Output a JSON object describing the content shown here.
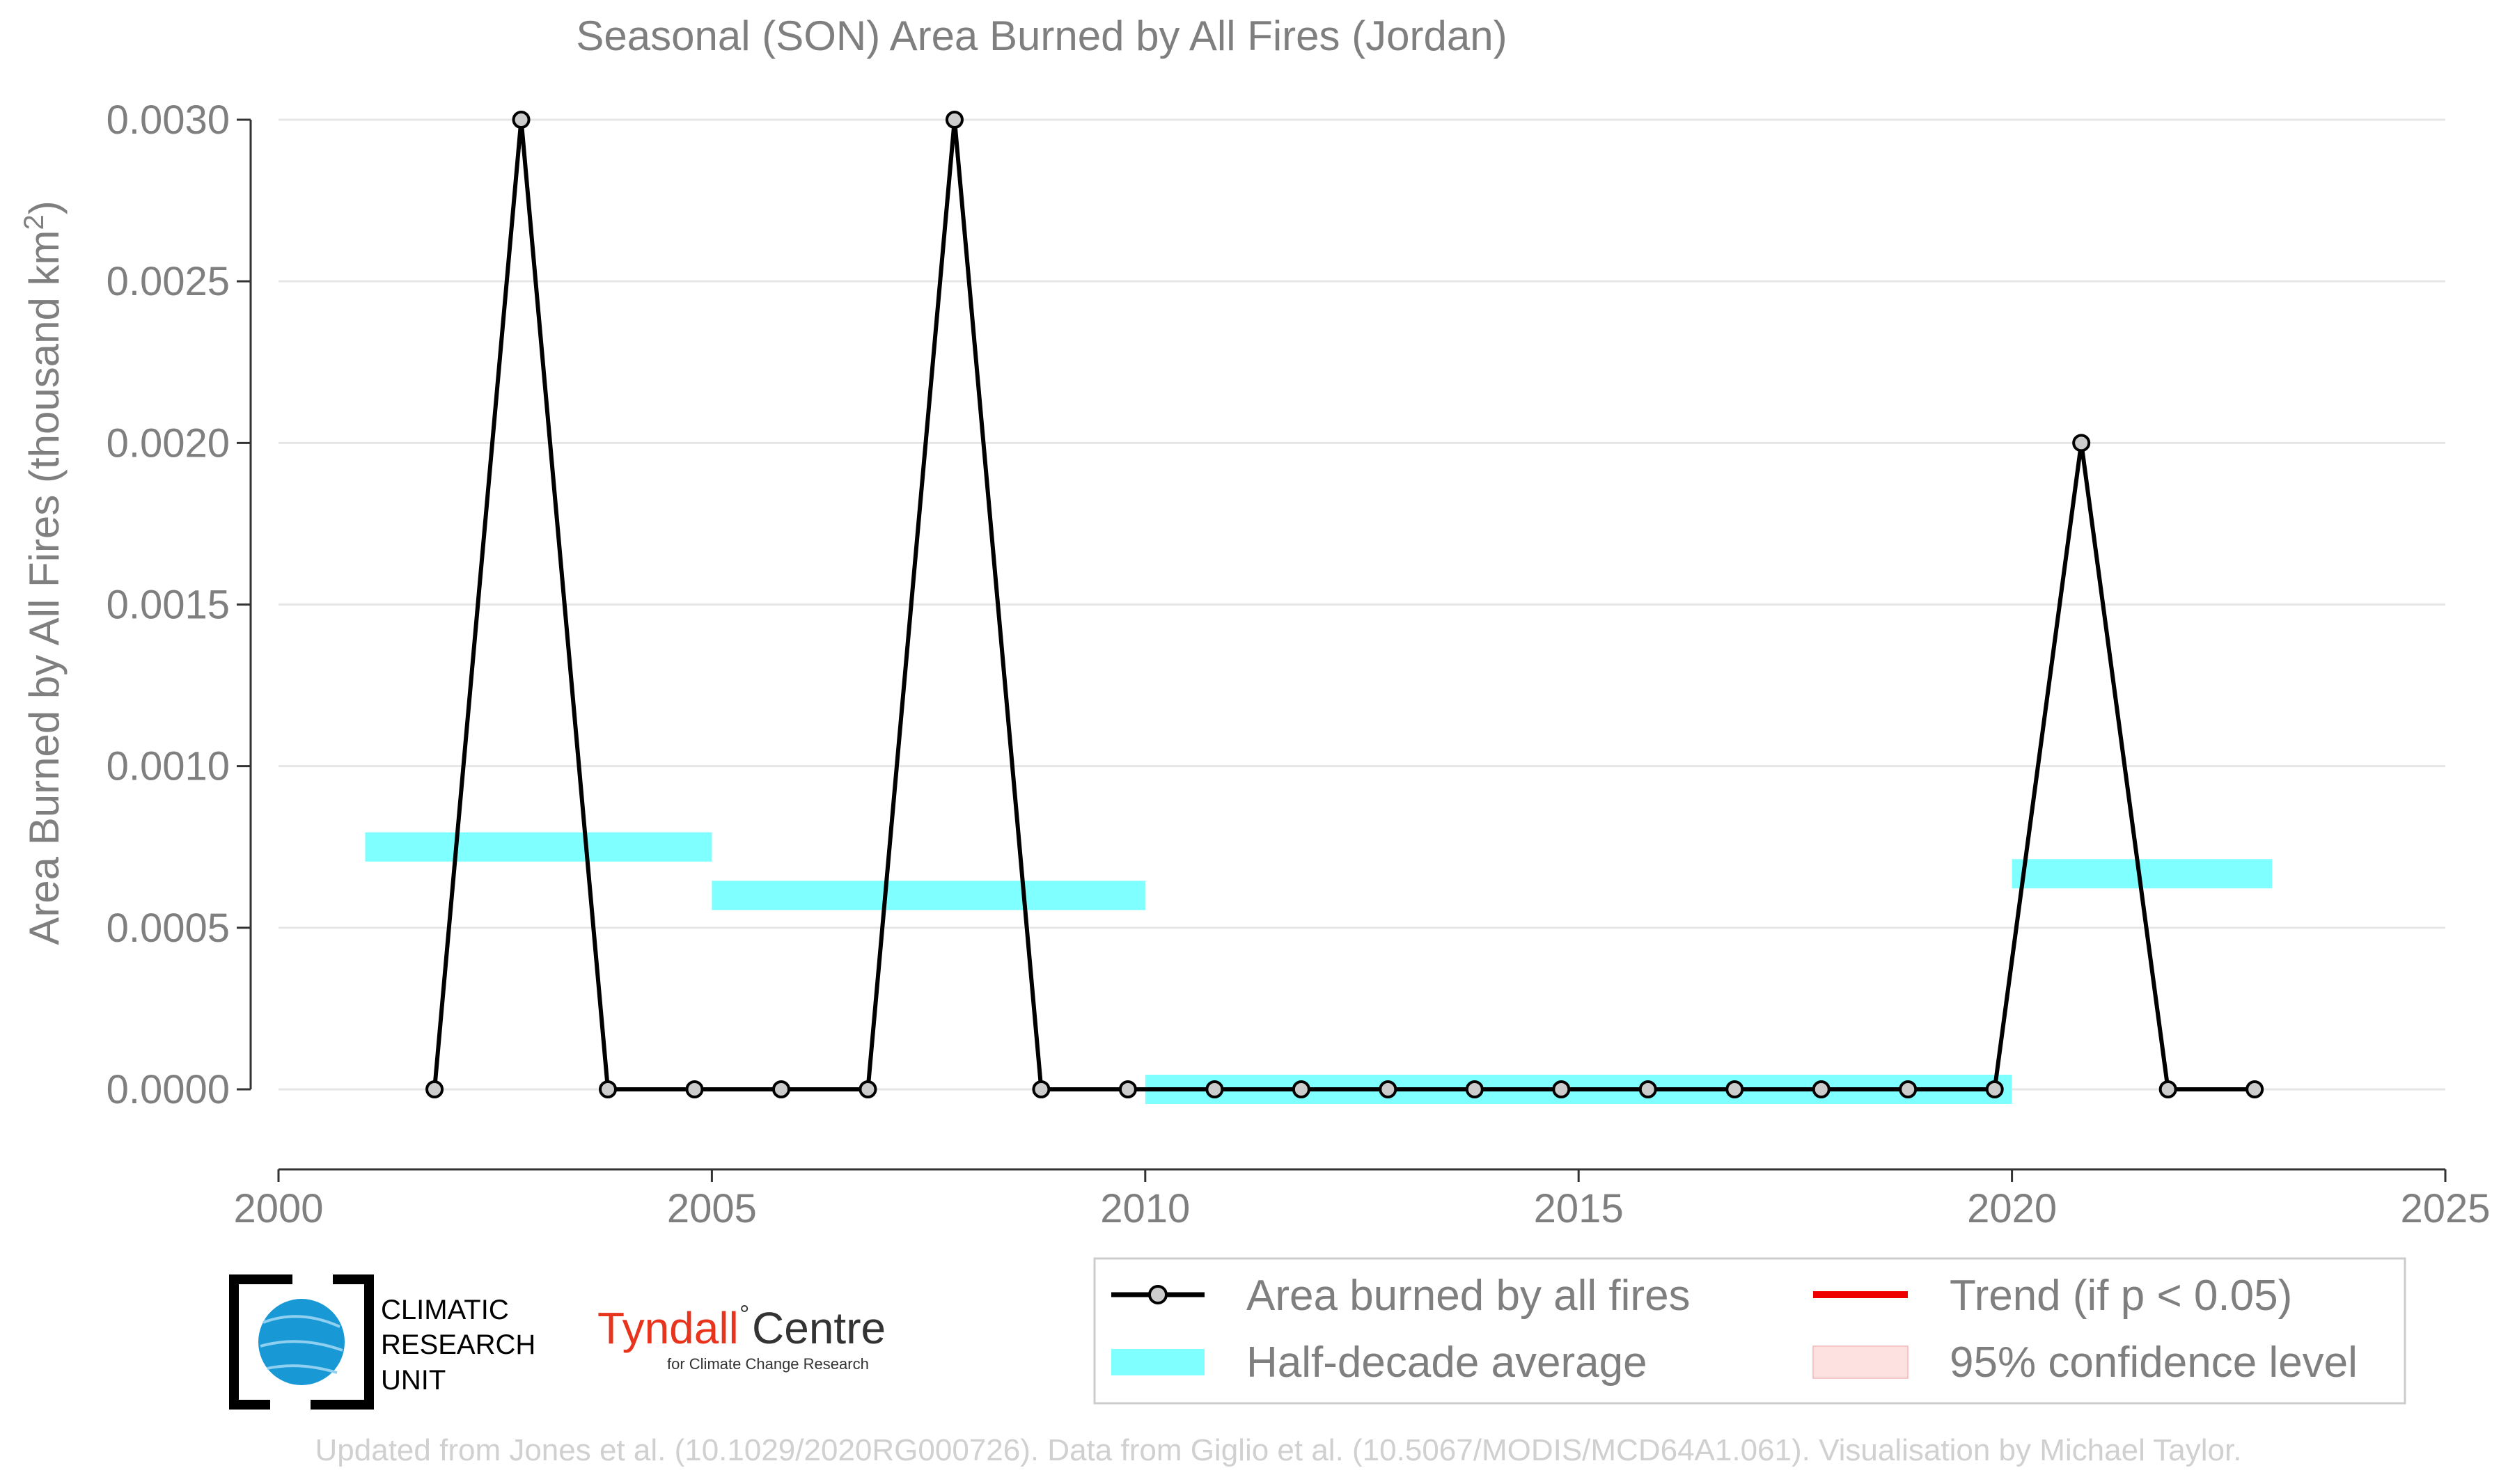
{
  "chart_data": {
    "type": "line",
    "title": "Seasonal (SON) Area Burned by All Fires (Jordan)",
    "ylabel_main": "Area Burned by All Fires (thousand km",
    "ylabel_sup": "2",
    "ylabel_close": ")",
    "xlim": [
      2000,
      2025
    ],
    "ylim": [
      -0.00025,
      0.003
    ],
    "x_ticks": [
      2000,
      2005,
      2010,
      2015,
      2020,
      2025
    ],
    "y_ticks": [
      0.0,
      0.0005,
      0.001,
      0.0015,
      0.002,
      0.0025,
      0.003
    ],
    "y_tick_labels": [
      "0.0000",
      "0.0005",
      "0.0010",
      "0.0015",
      "0.0020",
      "0.0025",
      "0.0030"
    ],
    "grid": "horizontal",
    "series": [
      {
        "name": "Area burned by all fires",
        "color": "#000000",
        "x": [
          2002,
          2003,
          2004,
          2005,
          2006,
          2007,
          2008,
          2009,
          2010,
          2011,
          2012,
          2013,
          2014,
          2015,
          2016,
          2017,
          2018,
          2019,
          2020,
          2021,
          2022,
          2023
        ],
        "y": [
          0.0,
          0.003,
          0.0,
          0.0,
          0.0,
          0.0,
          0.003,
          0.0,
          0.0,
          0.0,
          0.0,
          0.0,
          0.0,
          0.0,
          0.0,
          0.0,
          0.0,
          0.0,
          0.0,
          0.002,
          0.0,
          0.0
        ]
      }
    ],
    "half_decade_averages": {
      "name": "Half-decade average",
      "color": "#7fffff",
      "segments": [
        {
          "x_start": 2001,
          "x_end": 2005,
          "value": 0.00075
        },
        {
          "x_start": 2005,
          "x_end": 2010,
          "value": 0.0006
        },
        {
          "x_start": 2010,
          "x_end": 2020,
          "value": 0.0
        },
        {
          "x_start": 2020,
          "x_end": 2023,
          "value": 0.000667
        }
      ]
    },
    "legend": {
      "placement": "bottom-right",
      "entries": [
        {
          "label": "Area burned by all fires",
          "kind": "line-marker",
          "color": "#000000"
        },
        {
          "label": "Trend (if p < 0.05)",
          "kind": "line",
          "color": "#ee0000"
        },
        {
          "label": "Half-decade average",
          "kind": "band",
          "color": "#7fffff"
        },
        {
          "label": "95% confidence level",
          "kind": "band",
          "color": "#fde0e0"
        }
      ]
    }
  },
  "logos": {
    "cru_lines": [
      "CLIMATIC",
      "RESEARCH",
      "UNIT"
    ],
    "tyndall_main": "Tyndall",
    "tyndall_centre": "Centre",
    "tyndall_sub": "for Climate Change Research"
  },
  "credit": "Updated from Jones et al. (10.1029/2020RG000726). Data from Giglio et al. (10.5067/MODIS/MCD64A1.061). Visualisation by Michael Taylor."
}
